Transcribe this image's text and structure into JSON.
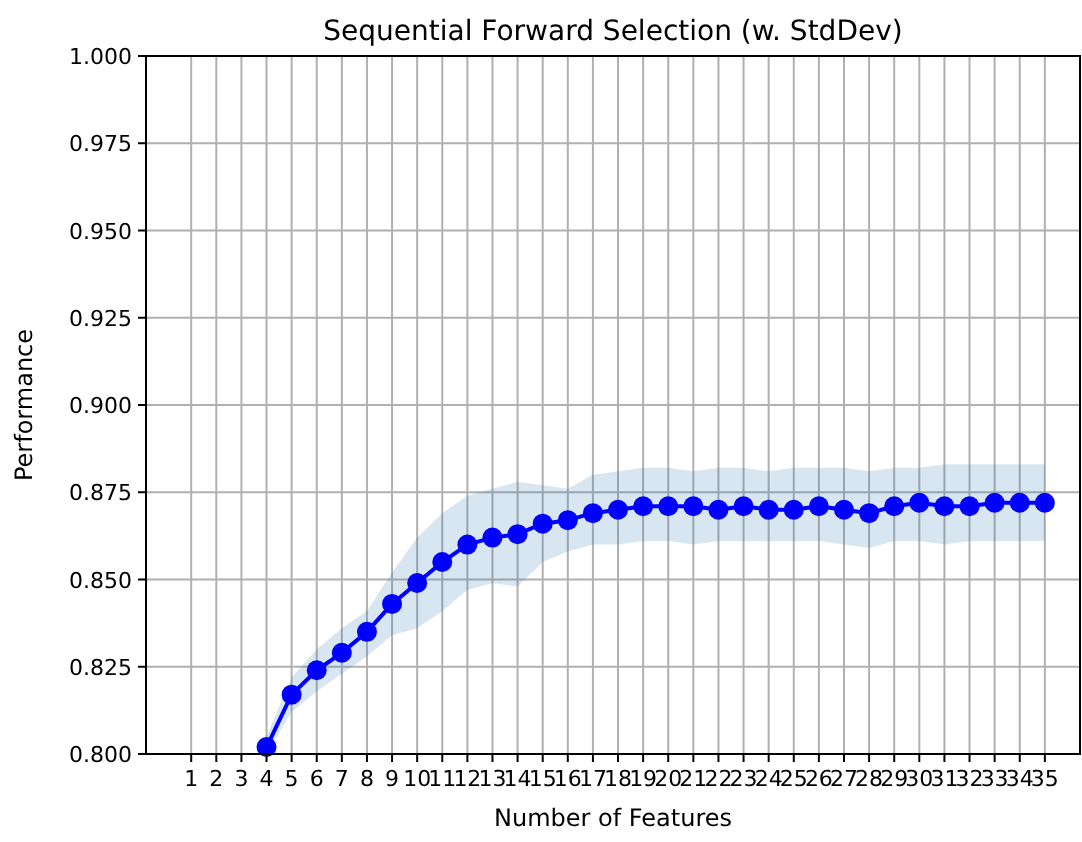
{
  "chart_data": {
    "type": "line",
    "title": "Sequential Forward Selection (w. StdDev)",
    "xlabel": "Number of Features",
    "ylabel": "Performance",
    "x": [
      4,
      5,
      6,
      7,
      8,
      9,
      10,
      11,
      12,
      13,
      14,
      15,
      16,
      17,
      18,
      19,
      20,
      21,
      22,
      23,
      24,
      25,
      26,
      27,
      28,
      29,
      30,
      31,
      32,
      33,
      34,
      35
    ],
    "series": [
      {
        "color": "#0000ff",
        "values": [
          0.802,
          0.817,
          0.824,
          0.829,
          0.835,
          0.843,
          0.849,
          0.855,
          0.86,
          0.862,
          0.863,
          0.866,
          0.867,
          0.869,
          0.87,
          0.871,
          0.871,
          0.871,
          0.87,
          0.871,
          0.87,
          0.87,
          0.871,
          0.87,
          0.869,
          0.871,
          0.872,
          0.871,
          0.871,
          0.872,
          0.872,
          0.872
        ],
        "lower": [
          0.8,
          0.812,
          0.818,
          0.823,
          0.828,
          0.834,
          0.836,
          0.841,
          0.847,
          0.849,
          0.848,
          0.855,
          0.858,
          0.86,
          0.86,
          0.861,
          0.861,
          0.86,
          0.861,
          0.861,
          0.861,
          0.861,
          0.861,
          0.86,
          0.859,
          0.861,
          0.861,
          0.86,
          0.861,
          0.861,
          0.861,
          0.861
        ],
        "upper": [
          0.805,
          0.822,
          0.83,
          0.836,
          0.841,
          0.852,
          0.862,
          0.869,
          0.874,
          0.876,
          0.878,
          0.877,
          0.876,
          0.88,
          0.881,
          0.882,
          0.882,
          0.881,
          0.882,
          0.882,
          0.881,
          0.882,
          0.882,
          0.882,
          0.881,
          0.882,
          0.882,
          0.883,
          0.883,
          0.883,
          0.883,
          0.883
        ]
      }
    ],
    "xlim": [
      -0.8,
      36.4
    ],
    "xticks": [
      1,
      2,
      3,
      4,
      5,
      6,
      7,
      8,
      9,
      10,
      11,
      12,
      13,
      14,
      15,
      16,
      17,
      18,
      19,
      20,
      21,
      22,
      23,
      24,
      25,
      26,
      27,
      28,
      29,
      30,
      31,
      32,
      33,
      34,
      35
    ],
    "ylim": [
      0.8,
      1.0
    ],
    "yticks": [
      {
        "value": 0.8,
        "label": "0.800"
      },
      {
        "value": 0.825,
        "label": "0.825"
      },
      {
        "value": 0.85,
        "label": "0.850"
      },
      {
        "value": 0.875,
        "label": "0.875"
      },
      {
        "value": 0.9,
        "label": "0.900"
      },
      {
        "value": 0.925,
        "label": "0.925"
      },
      {
        "value": 0.95,
        "label": "0.950"
      },
      {
        "value": 0.975,
        "label": "0.975"
      },
      {
        "value": 1.0,
        "label": "1.000"
      }
    ],
    "grid": true,
    "marker": "circle",
    "line_style": "solid"
  }
}
